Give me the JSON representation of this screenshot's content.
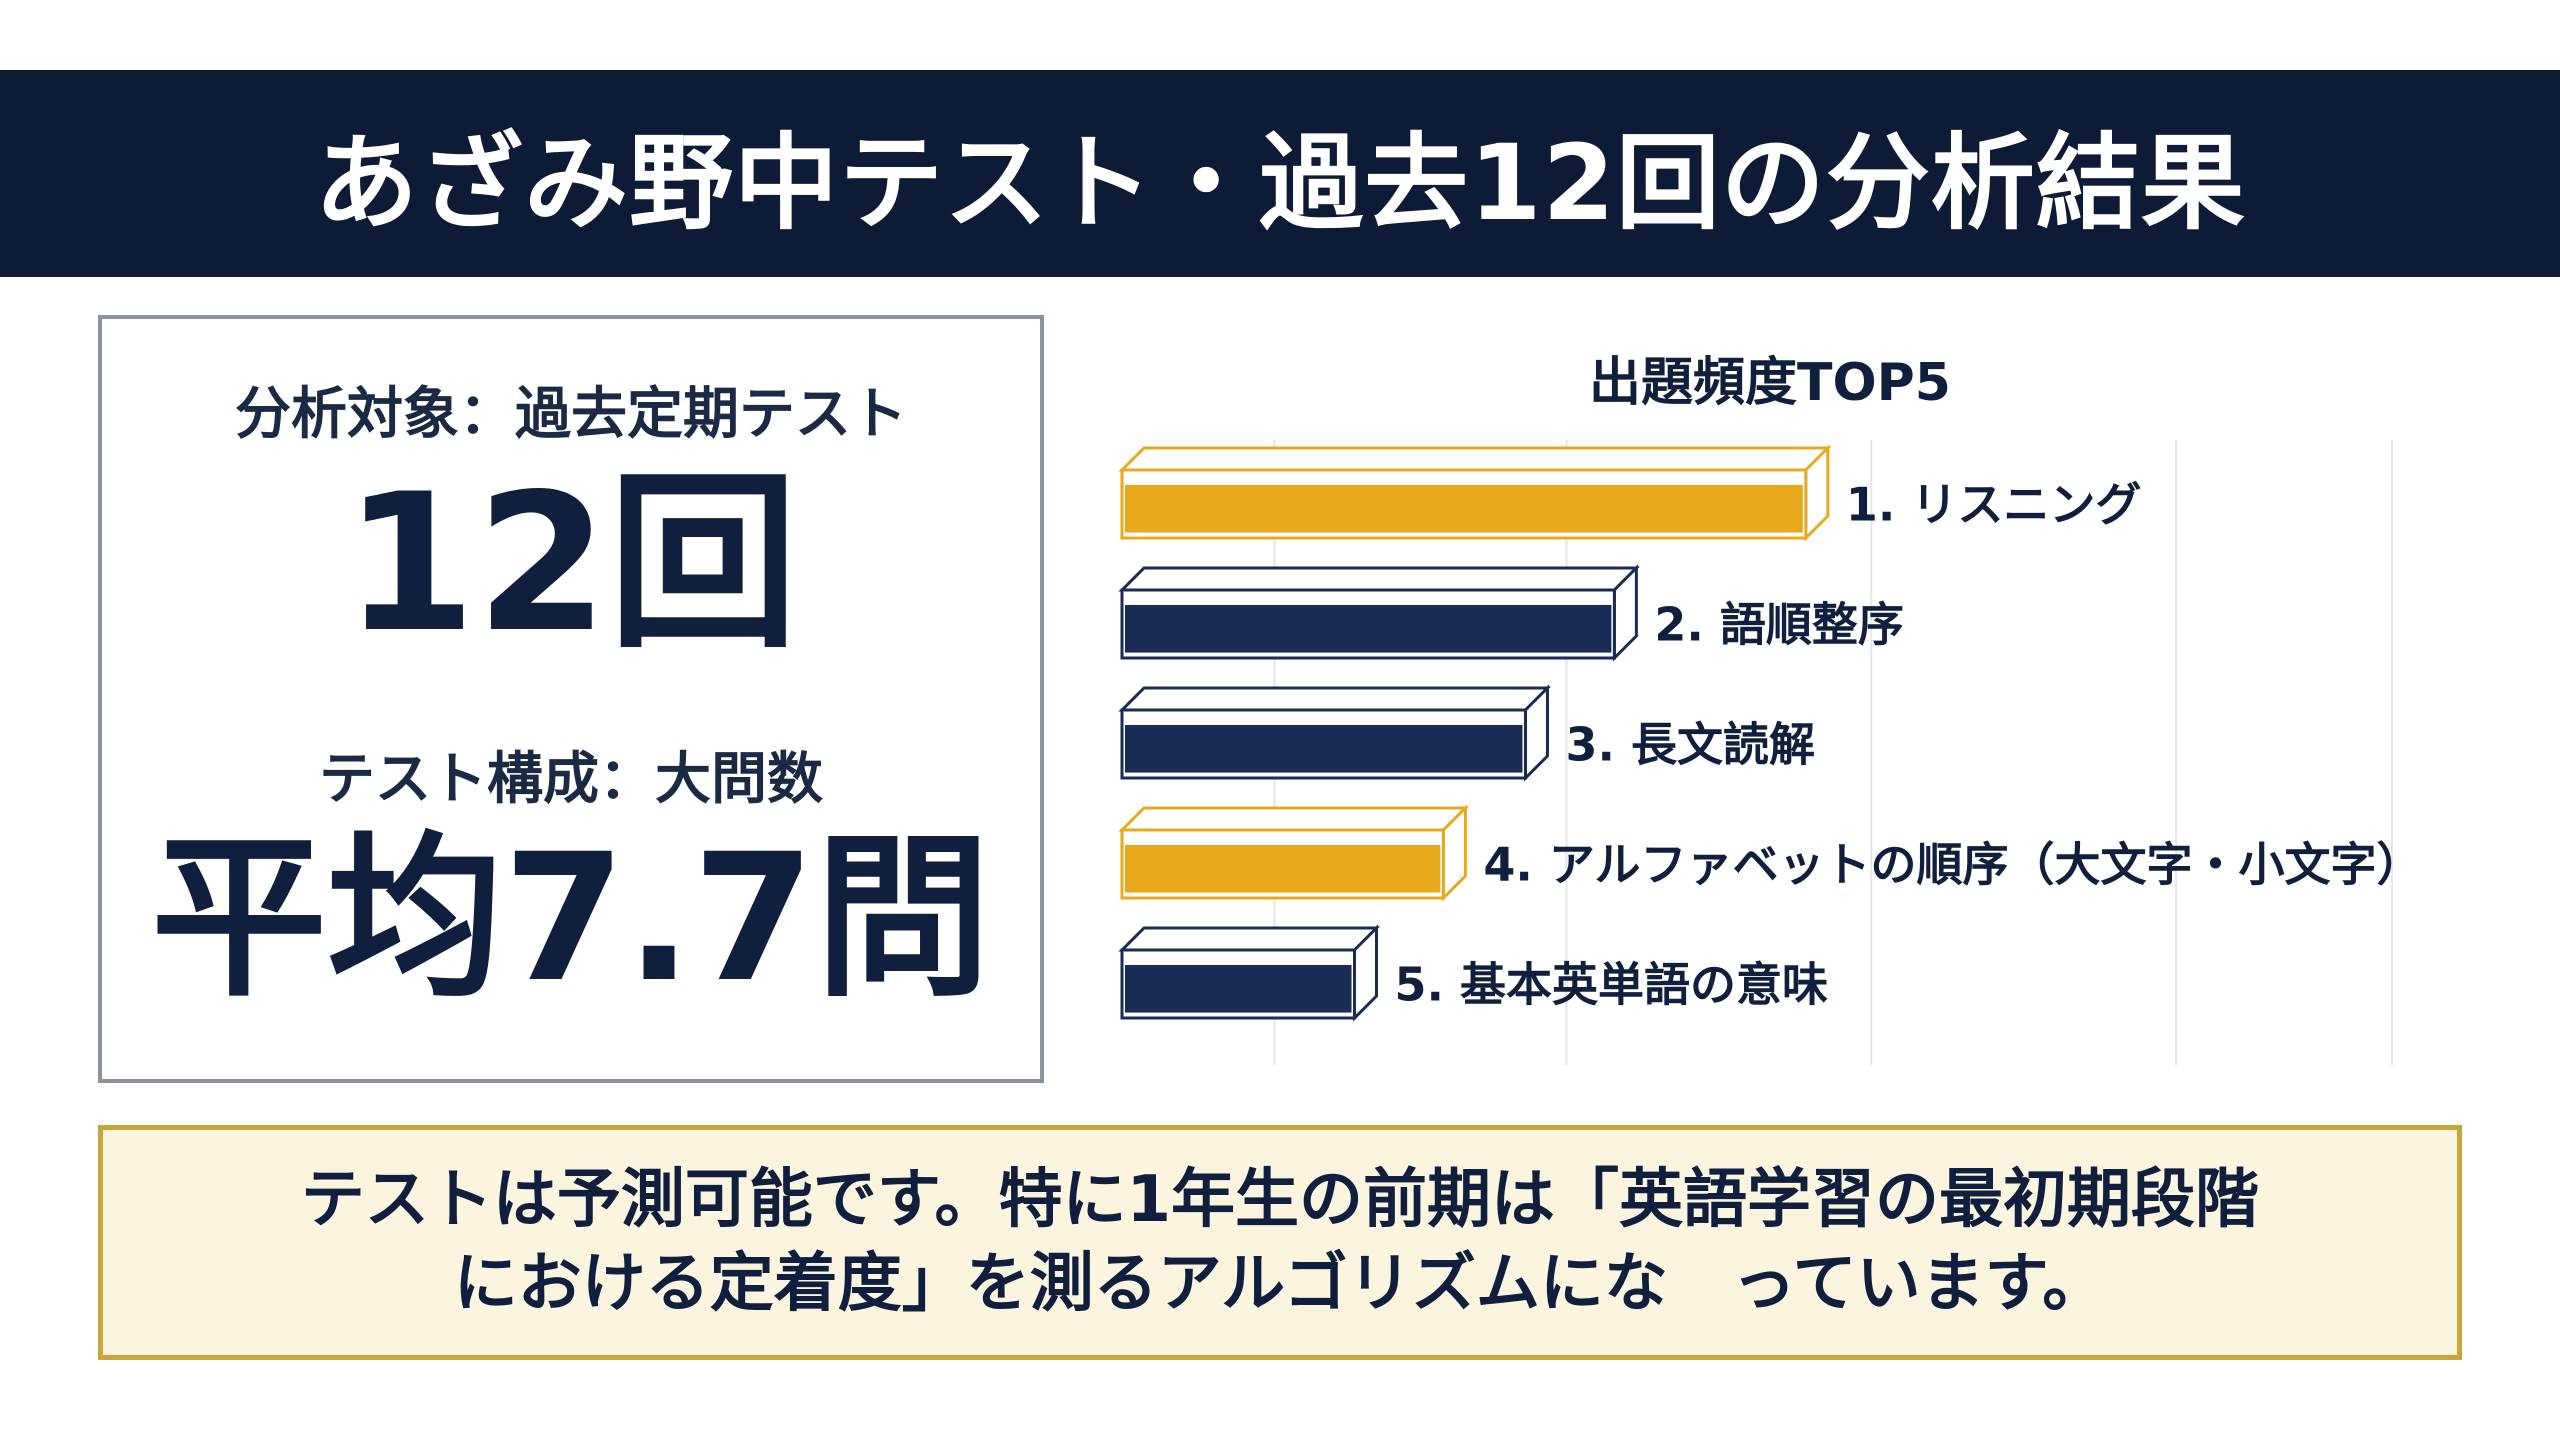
{
  "title": "あざみ野中テスト・過去12回の分析結果",
  "summary": {
    "target_label": "分析対象：過去定期テスト",
    "target_value": "12回",
    "structure_label": "テスト構成：大問数",
    "structure_value": "平均7.7問"
  },
  "colors": {
    "navy": "#1a2b55",
    "gold": "#e8aa1c",
    "header_bg": "#0e1b36"
  },
  "chart_data": {
    "type": "bar",
    "orientation": "horizontal",
    "title": "出題頻度TOP5",
    "categories": [
      "1. リスニング",
      "2. 語順整序",
      "3. 長文読解",
      "4. アルファベットの順序（大文字・小文字）",
      "5. 基本英単語の意味"
    ],
    "values": [
      100,
      72,
      59,
      47,
      34
    ],
    "bar_colors": [
      "gold",
      "navy",
      "navy",
      "gold",
      "navy"
    ],
    "xlim": [
      0,
      130
    ],
    "grid": true,
    "legend": "none"
  },
  "note": {
    "text": "テストは予測可能です。特に1年生の前期は「英語学習の最初期段階\nにおける定着度」を測るアルゴリズムにな　っています。"
  }
}
